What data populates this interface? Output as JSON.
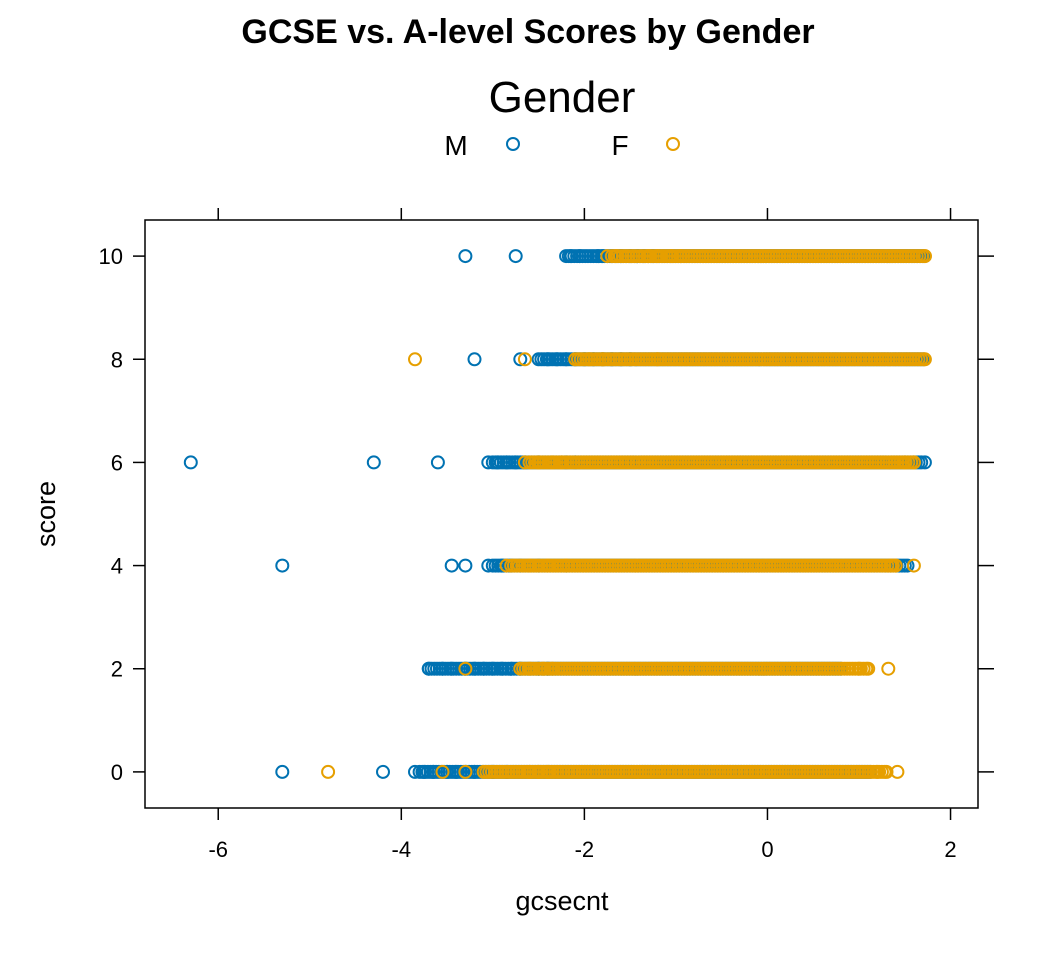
{
  "chart_data": {
    "type": "scatter",
    "title": "GCSE vs. A-level Scores by Gender",
    "xlabel": "gcsecnt",
    "ylabel": "score",
    "xlim": [
      -6.8,
      2.3
    ],
    "ylim": [
      -0.7,
      10.7
    ],
    "x_ticks": [
      -6,
      -4,
      -2,
      0,
      2
    ],
    "y_ticks": [
      0,
      2,
      4,
      6,
      8,
      10
    ],
    "legend": {
      "title": "Gender",
      "position": "top",
      "entries": [
        {
          "label": "M",
          "color": "#0072B2",
          "marker": "open-circle"
        },
        {
          "label": "F",
          "color": "#E69F00",
          "marker": "open-circle"
        }
      ]
    },
    "series": [
      {
        "name": "M",
        "color": "#0072B2",
        "points": [
          {
            "score": 10,
            "x_min": -2.2,
            "x_max": 1.7,
            "outliers": [
              -3.3,
              -2.75,
              -2.15,
              -2.05,
              -1.85,
              -1.8,
              -1.7,
              -1.6,
              -1.5,
              -1.42,
              -1.35,
              -1.25
            ]
          },
          {
            "score": 8,
            "x_min": -2.5,
            "x_max": 1.7,
            "outliers": [
              -3.2,
              -2.7,
              -2.4,
              -2.3,
              -2.2,
              -2.1,
              -2.0,
              -1.9,
              -1.8,
              -1.7,
              -1.6,
              -1.5
            ]
          },
          {
            "score": 6,
            "x_min": -3.0,
            "x_max": 1.7,
            "outliers": [
              -6.3,
              -4.3,
              -3.6,
              -3.05,
              -2.95,
              -2.85,
              -2.75,
              -2.65,
              -2.5,
              -2.2,
              -2.1,
              1.72
            ]
          },
          {
            "score": 4,
            "x_min": -3.0,
            "x_max": 1.55,
            "outliers": [
              -5.3,
              -3.45,
              -3.3,
              -3.05,
              -2.9,
              -2.8,
              -2.7,
              -2.5,
              -2.2
            ]
          },
          {
            "score": 2,
            "x_min": -3.7,
            "x_max": 0.8,
            "outliers": [
              -3.7,
              -3.55,
              -3.45,
              -3.3,
              -3.2,
              -3.1,
              -3.0,
              -2.9,
              -2.8,
              -2.7,
              -2.5,
              -2.4
            ]
          },
          {
            "score": 0,
            "x_min": -3.8,
            "x_max": 1.1,
            "outliers": [
              -5.3,
              -4.2,
              -3.85,
              -3.75,
              -3.65,
              -3.5,
              -3.4,
              -3.3,
              -3.2,
              -3.0,
              -2.85,
              1.12
            ]
          }
        ]
      },
      {
        "name": "F",
        "color": "#E69F00",
        "points": [
          {
            "score": 10,
            "x_min": -1.7,
            "x_max": 1.72,
            "outliers": [
              -1.75,
              -1.65,
              -1.3,
              -1.2,
              -1.05,
              -0.95,
              1.72
            ]
          },
          {
            "score": 8,
            "x_min": -2.1,
            "x_max": 1.72,
            "outliers": [
              -3.85,
              -2.65,
              -1.95,
              -1.8,
              -1.2,
              1.72
            ]
          },
          {
            "score": 6,
            "x_min": -2.6,
            "x_max": 1.6,
            "outliers": [
              -2.65,
              -2.5,
              -2.35,
              -2.25,
              1.5,
              1.6
            ]
          },
          {
            "score": 4,
            "x_min": -2.8,
            "x_max": 1.4,
            "outliers": [
              -2.85,
              -2.6,
              -2.4,
              -2.2,
              1.35,
              1.4,
              1.6
            ]
          },
          {
            "score": 2,
            "x_min": -2.7,
            "x_max": 1.1,
            "outliers": [
              -3.3,
              -2.6,
              -2.45,
              -2.35,
              1.0,
              1.1,
              1.32
            ]
          },
          {
            "score": 0,
            "x_min": -3.1,
            "x_max": 1.3,
            "outliers": [
              -4.8,
              -3.55,
              -3.3,
              -2.6,
              -2.5,
              -2.4,
              1.2,
              1.3,
              1.42
            ]
          }
        ]
      }
    ]
  }
}
